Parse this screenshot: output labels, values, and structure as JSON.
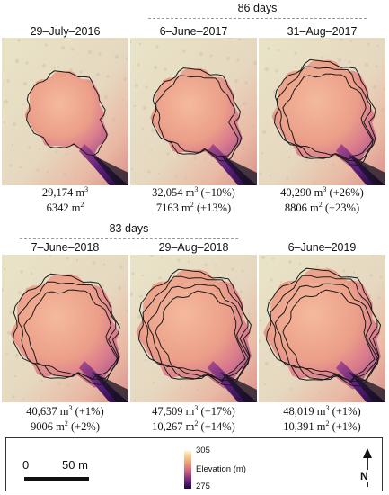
{
  "intervals": [
    {
      "label": "86 days"
    },
    {
      "label": "83 days"
    }
  ],
  "panels": [
    {
      "date": "29–July–2016",
      "volume": "29,174 m",
      "volume_change": "",
      "area": "6342 m",
      "area_change": ""
    },
    {
      "date": "6–June–2017",
      "volume": "32,054 m",
      "volume_change": " (+10%)",
      "area": "7163 m",
      "area_change": " (+13%)"
    },
    {
      "date": "31–Aug–2017",
      "volume": "40,290 m",
      "volume_change": " (+26%)",
      "area": "8806 m",
      "area_change": " (+23%)"
    },
    {
      "date": "7–June–2018",
      "volume": "40,637 m",
      "volume_change": " (+1%)",
      "area": "9006 m",
      "area_change": " (+2%)"
    },
    {
      "date": "29–Aug–2018",
      "volume": "47,509 m",
      "volume_change": " (+17%)",
      "area": "10,267 m",
      "area_change": " (+14%)"
    },
    {
      "date": "6–June–2019",
      "volume": "48,019 m",
      "volume_change": " (+1%)",
      "area": "10,391 m",
      "area_change": " (+1%)"
    }
  ],
  "units": {
    "volume_exp": "3",
    "area_exp": "2"
  },
  "legend": {
    "scale_start": "0",
    "scale_end": "50 m",
    "colorbar_max": "305",
    "colorbar_min": "275",
    "colorbar_label": "Elevation (m)",
    "north_label": "N"
  }
}
